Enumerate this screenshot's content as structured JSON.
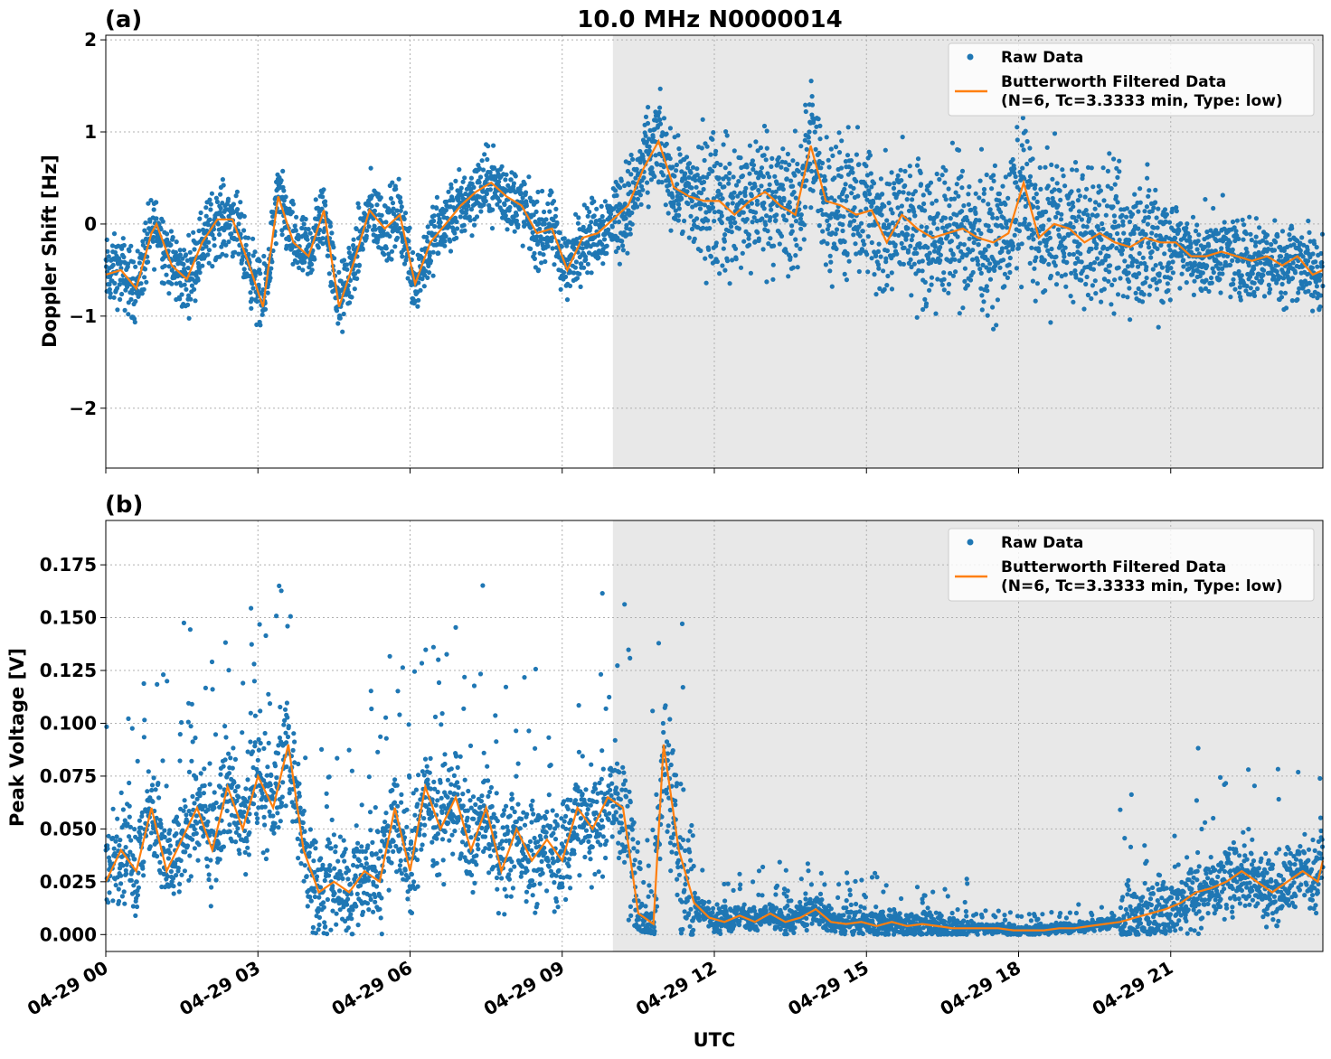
{
  "figure": {
    "title": "10.0 MHz N0000014",
    "xlabel": "UTC",
    "colors": {
      "raw": "#1f77b4",
      "filtered": "#ff7f0e",
      "shade": "#e8e8e8",
      "grid": "#b0b0b0"
    }
  },
  "chart_data": [
    {
      "type": "scatter",
      "panel_label": "(a)",
      "ylabel": "Doppler Shift [Hz]",
      "x_range_hours": [
        0,
        24
      ],
      "x_ticks": [
        "04-29 00",
        "04-29 03",
        "04-29 06",
        "04-29 09",
        "04-29 12",
        "04-29 15",
        "04-29 18",
        "04-29 21"
      ],
      "ylim": [
        -2.65,
        2.05
      ],
      "y_ticks": [
        "2",
        "1",
        "0",
        "−1",
        "−2"
      ],
      "y_tick_values": [
        2,
        1,
        0,
        -1,
        -2
      ],
      "shaded_region_hours": [
        10.0,
        24.0
      ],
      "grid": true,
      "legend_position": "top-right",
      "legend": [
        "Raw Data",
        "Butterworth Filtered Data",
        "(N=6, Tc=3.3333 min, Type: low)"
      ],
      "filtered_series": {
        "name": "Butterworth Filtered Data",
        "x": [
          0,
          0.3,
          0.6,
          0.9,
          1.0,
          1.3,
          1.6,
          1.9,
          2.2,
          2.5,
          2.8,
          3.1,
          3.4,
          3.7,
          4.0,
          4.3,
          4.6,
          4.9,
          5.2,
          5.5,
          5.8,
          6.1,
          6.4,
          6.7,
          7.0,
          7.3,
          7.6,
          7.9,
          8.2,
          8.5,
          8.8,
          9.1,
          9.4,
          9.7,
          10.0,
          10.3,
          10.6,
          10.9,
          11.2,
          11.5,
          11.8,
          12.1,
          12.4,
          12.7,
          13.0,
          13.3,
          13.6,
          13.9,
          14.2,
          14.5,
          14.8,
          15.1,
          15.4,
          15.7,
          16.0,
          16.3,
          16.6,
          16.9,
          17.2,
          17.5,
          17.8,
          18.1,
          18.4,
          18.7,
          19.0,
          19.3,
          19.6,
          19.9,
          20.2,
          20.5,
          20.8,
          21.1,
          21.4,
          21.7,
          22.0,
          22.3,
          22.6,
          22.9,
          23.2,
          23.5,
          23.8,
          24.0
        ],
        "y": [
          -0.55,
          -0.5,
          -0.7,
          -0.1,
          0.0,
          -0.45,
          -0.6,
          -0.2,
          0.05,
          0.05,
          -0.4,
          -0.9,
          0.3,
          -0.2,
          -0.35,
          0.15,
          -0.9,
          -0.4,
          0.15,
          -0.05,
          0.1,
          -0.65,
          -0.2,
          0.0,
          0.2,
          0.35,
          0.45,
          0.3,
          0.2,
          -0.1,
          -0.05,
          -0.5,
          -0.15,
          -0.1,
          0.05,
          0.2,
          0.6,
          0.9,
          0.4,
          0.3,
          0.25,
          0.25,
          0.1,
          0.25,
          0.35,
          0.2,
          0.1,
          0.85,
          0.25,
          0.2,
          0.1,
          0.15,
          -0.2,
          0.1,
          -0.05,
          -0.15,
          -0.1,
          -0.05,
          -0.15,
          -0.2,
          -0.1,
          0.45,
          -0.15,
          0.0,
          -0.05,
          -0.2,
          -0.1,
          -0.2,
          -0.25,
          -0.15,
          -0.2,
          -0.2,
          -0.35,
          -0.35,
          -0.3,
          -0.35,
          -0.4,
          -0.35,
          -0.45,
          -0.35,
          -0.55,
          -0.5
        ]
      },
      "raw_series": {
        "name": "Raw Data",
        "spread_hz": [
          [
            0,
            10,
            0.35
          ],
          [
            10,
            11.5,
            0.45
          ],
          [
            11.5,
            21,
            0.7
          ],
          [
            21,
            24,
            0.4
          ]
        ]
      }
    },
    {
      "type": "scatter",
      "panel_label": "(b)",
      "ylabel": "Peak Voltage [V]",
      "x_range_hours": [
        0,
        24
      ],
      "x_ticks": [
        "04-29 00",
        "04-29 03",
        "04-29 06",
        "04-29 09",
        "04-29 12",
        "04-29 15",
        "04-29 18",
        "04-29 21"
      ],
      "ylim": [
        -0.008,
        0.196
      ],
      "y_ticks": [
        "0.175",
        "0.150",
        "0.125",
        "0.100",
        "0.075",
        "0.050",
        "0.025",
        "0.000"
      ],
      "y_tick_values": [
        0.175,
        0.15,
        0.125,
        0.1,
        0.075,
        0.05,
        0.025,
        0.0
      ],
      "shaded_region_hours": [
        10.0,
        24.0
      ],
      "grid": true,
      "legend_position": "top-right",
      "legend": [
        "Raw Data",
        "Butterworth Filtered Data",
        "(N=6, Tc=3.3333 min, Type: low)"
      ],
      "filtered_series": {
        "name": "Butterworth Filtered Data",
        "x": [
          0,
          0.3,
          0.6,
          0.9,
          1.2,
          1.5,
          1.8,
          2.1,
          2.4,
          2.7,
          3.0,
          3.3,
          3.6,
          3.9,
          4.2,
          4.5,
          4.8,
          5.1,
          5.4,
          5.7,
          6.0,
          6.3,
          6.6,
          6.9,
          7.2,
          7.5,
          7.8,
          8.1,
          8.4,
          8.7,
          9.0,
          9.3,
          9.6,
          9.9,
          10.2,
          10.5,
          10.8,
          11.0,
          11.3,
          11.6,
          11.9,
          12.2,
          12.5,
          12.8,
          13.1,
          13.4,
          13.7,
          14.0,
          14.3,
          14.6,
          14.9,
          15.2,
          15.5,
          15.8,
          16.1,
          16.4,
          16.7,
          17.0,
          17.3,
          17.6,
          17.9,
          18.2,
          18.5,
          18.8,
          19.1,
          19.4,
          19.7,
          20.0,
          20.3,
          20.6,
          20.9,
          21.2,
          21.5,
          21.8,
          22.1,
          22.4,
          22.7,
          23.0,
          23.3,
          23.6,
          23.9,
          24.0
        ],
        "y": [
          0.025,
          0.04,
          0.03,
          0.06,
          0.03,
          0.045,
          0.06,
          0.04,
          0.07,
          0.05,
          0.075,
          0.06,
          0.09,
          0.04,
          0.02,
          0.025,
          0.02,
          0.03,
          0.025,
          0.06,
          0.03,
          0.07,
          0.05,
          0.065,
          0.04,
          0.06,
          0.03,
          0.05,
          0.035,
          0.045,
          0.035,
          0.06,
          0.05,
          0.065,
          0.06,
          0.01,
          0.005,
          0.09,
          0.04,
          0.015,
          0.008,
          0.006,
          0.009,
          0.006,
          0.01,
          0.006,
          0.008,
          0.012,
          0.006,
          0.005,
          0.006,
          0.004,
          0.006,
          0.004,
          0.005,
          0.004,
          0.003,
          0.003,
          0.003,
          0.003,
          0.002,
          0.002,
          0.002,
          0.003,
          0.003,
          0.004,
          0.005,
          0.006,
          0.008,
          0.01,
          0.012,
          0.015,
          0.02,
          0.022,
          0.025,
          0.03,
          0.025,
          0.02,
          0.025,
          0.03,
          0.025,
          0.035
        ]
      },
      "raw_series": {
        "name": "Raw Data",
        "spread_v": [
          [
            0,
            10,
            0.03
          ],
          [
            10,
            11.6,
            0.04
          ],
          [
            11.6,
            17,
            0.008
          ],
          [
            17,
            20,
            0.003
          ],
          [
            20,
            24,
            0.02
          ]
        ]
      }
    }
  ]
}
